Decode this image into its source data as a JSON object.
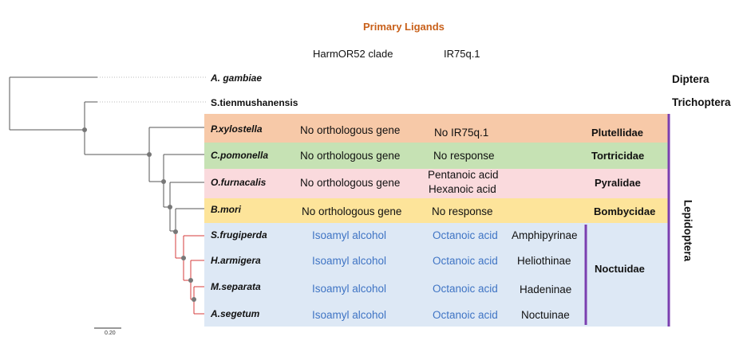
{
  "title": "Primary Ligands",
  "title_color": "#c8601a",
  "headers": {
    "col1": "HarmOR52 clade",
    "col2": "IR75q.1"
  },
  "outgroups": [
    {
      "species": "A. gambiae",
      "order": "Diptera"
    },
    {
      "species": "S.tienmushanensis",
      "order": "Trichoptera"
    }
  ],
  "lepidoptera_label": "Lepidoptera",
  "rows": [
    {
      "species": "P.xylostella",
      "col1": "No orthologous gene",
      "col2": "No IR75q.1",
      "family": "Plutellidae",
      "color": "#f7c9a8"
    },
    {
      "species": "C.pomonella",
      "col1": "No orthologous gene",
      "col2": "No response",
      "family": "Tortricidae",
      "color": "#c6e2b4"
    },
    {
      "species": "O.furnacalis",
      "col1": "No orthologous gene",
      "col2_line1": "Pentanoic acid",
      "col2_line2": "Hexanoic acid",
      "family": "Pyralidae",
      "color": "#fadadd"
    },
    {
      "species": "B.mori",
      "col1": "No orthologous gene",
      "col2": "No response",
      "family": "Bombycidae",
      "color": "#fde49a"
    }
  ],
  "noctuidae": {
    "family": "Noctuidae",
    "color": "#dde8f5",
    "rows": [
      {
        "species": "S.frugiperda",
        "col1": "Isoamyl alcohol",
        "col2": "Octanoic acid",
        "subfamily": "Amphipyrinae"
      },
      {
        "species": "H.armigera",
        "col1": "Isoamyl alcohol",
        "col2": "Octanoic acid",
        "subfamily": "Heliothinae"
      },
      {
        "species": "M.separata",
        "col1": "Isoamyl alcohol",
        "col2": "Octanoic acid",
        "subfamily": "Hadeninae"
      },
      {
        "species": "A.segetum",
        "col1": "Isoamyl alcohol",
        "col2": "Octanoic acid",
        "subfamily": "Noctuinae"
      }
    ]
  },
  "scale_label": "0.20",
  "bracket_color": "#7b3fb0",
  "noctuid_branch_color": "#d63b3b"
}
